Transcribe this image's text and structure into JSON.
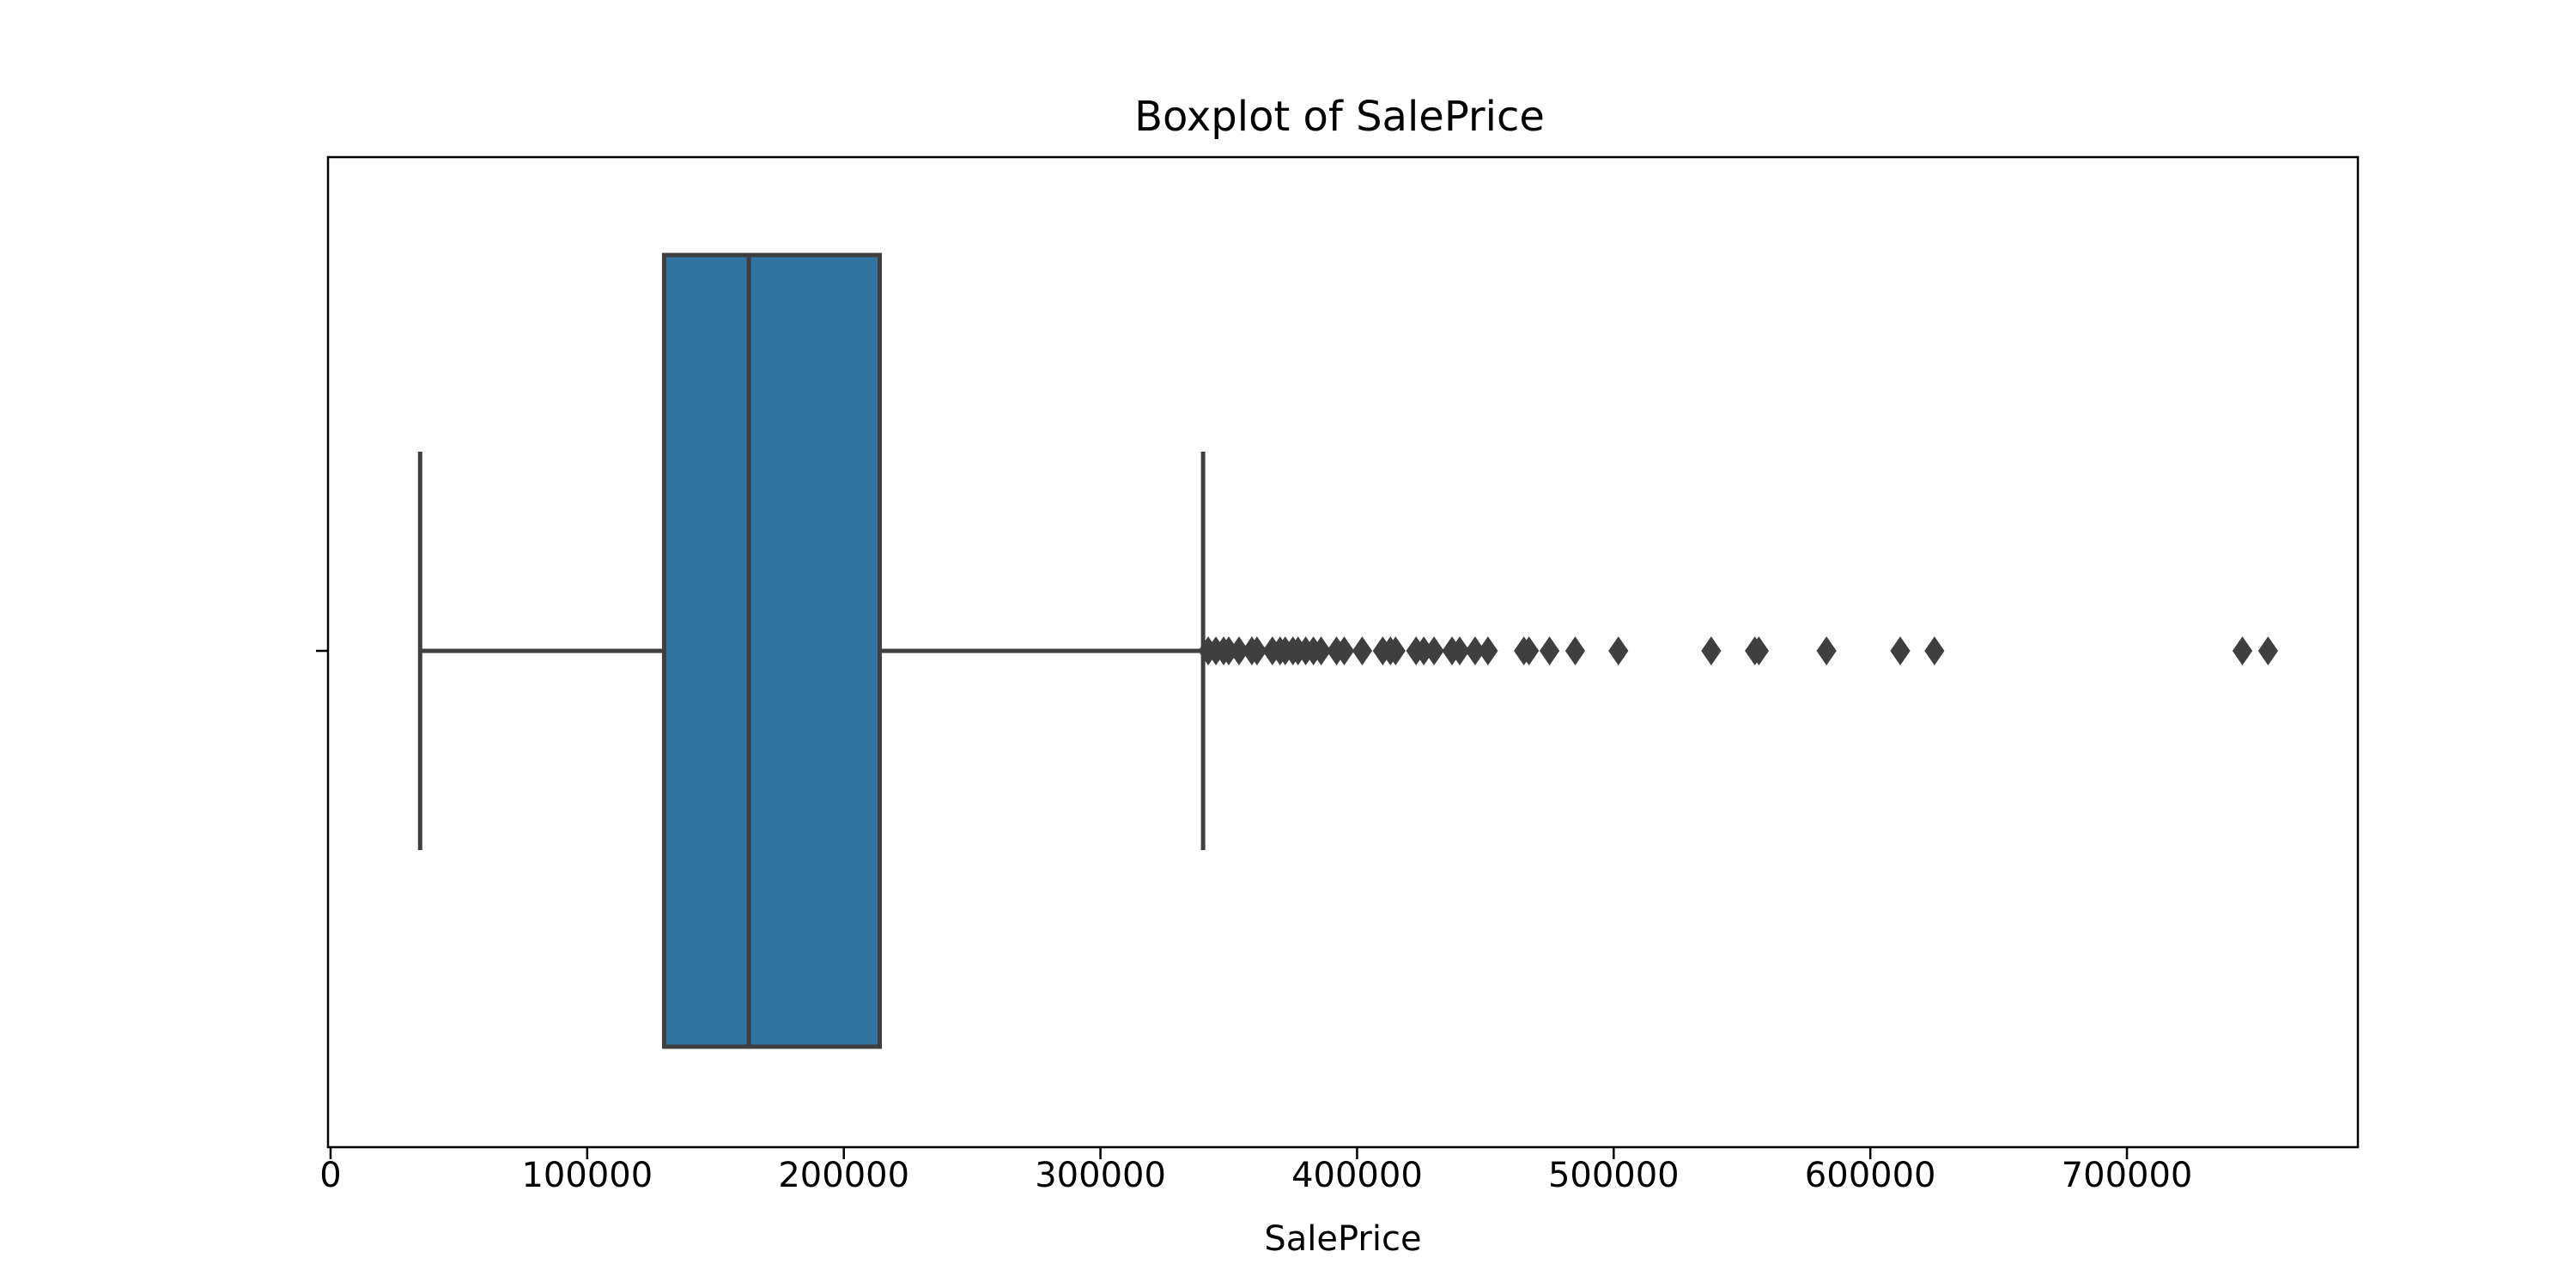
{
  "chart_data": {
    "type": "boxplot",
    "title": "Boxplot of SalePrice",
    "xlabel": "SalePrice",
    "ylabel": "",
    "orientation": "horizontal",
    "xlim": [
      -1000,
      790000
    ],
    "xticks": [
      0,
      100000,
      200000,
      300000,
      400000,
      500000,
      600000,
      700000
    ],
    "xtick_labels": [
      "0",
      "100000",
      "200000",
      "300000",
      "400000",
      "500000",
      "600000",
      "700000"
    ],
    "grid": false,
    "box": {
      "whisker_low": 34900,
      "q1": 129975,
      "median": 163000,
      "q3": 214000,
      "whisker_high": 340000
    },
    "outliers": [
      342000,
      345000,
      348000,
      350000,
      354000,
      359000,
      361000,
      367000,
      370000,
      372000,
      375000,
      377000,
      380000,
      383000,
      386000,
      392000,
      395000,
      402000,
      410000,
      413000,
      415000,
      423000,
      426000,
      430000,
      437000,
      440000,
      446000,
      451000,
      465000,
      467000,
      475000,
      485000,
      501837,
      538000,
      555000,
      556581,
      582933,
      611657,
      625000,
      745000,
      755000
    ],
    "colors": {
      "box_fill": "#3274a1",
      "line": "#3f3f3f",
      "frame": "#000000"
    }
  }
}
